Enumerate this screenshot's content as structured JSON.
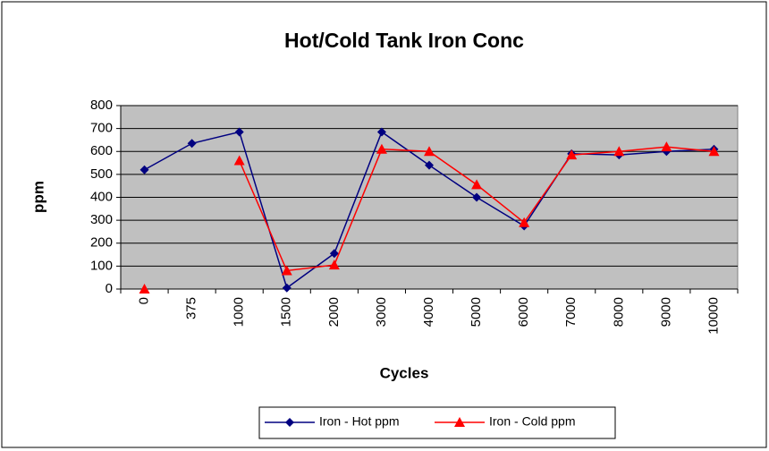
{
  "chart_data": {
    "type": "line",
    "title": "Hot/Cold Tank Iron Conc",
    "x_label": "Cycles",
    "y_label": "ppm",
    "categories": [
      "0",
      "375",
      "1000",
      "1500",
      "2000",
      "3000",
      "4000",
      "5000",
      "6000",
      "7000",
      "8000",
      "9000",
      "10000"
    ],
    "series": [
      {
        "name": "Iron - Hot ppm",
        "color": "#000080",
        "marker": "diamond",
        "values": [
          520,
          635,
          685,
          5,
          155,
          685,
          540,
          400,
          275,
          590,
          585,
          600,
          610
        ]
      },
      {
        "name": "Iron - Cold ppm",
        "color": "#ff0000",
        "marker": "triangle",
        "values": [
          0,
          null,
          560,
          80,
          105,
          610,
          600,
          455,
          290,
          585,
          600,
          620,
          600
        ]
      }
    ],
    "ylim": [
      0,
      800
    ],
    "yticks": [
      0,
      100,
      200,
      300,
      400,
      500,
      600,
      700,
      800
    ],
    "grid": true,
    "legend": "bottom"
  }
}
